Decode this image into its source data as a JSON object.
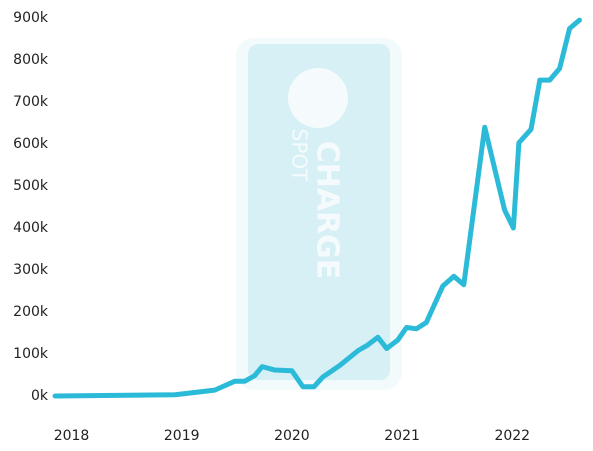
{
  "chart_data": {
    "type": "line",
    "watermark_texts": [
      "CHARGE",
      "SPOT"
    ],
    "x": [
      2017.85,
      2018.94,
      2019.3,
      2019.48,
      2019.57,
      2019.66,
      2019.73,
      2019.84,
      2020.0,
      2020.1,
      2020.2,
      2020.28,
      2020.43,
      2020.6,
      2020.68,
      2020.78,
      2020.86,
      2020.96,
      2021.04,
      2021.13,
      2021.22,
      2021.37,
      2021.47,
      2021.56,
      2021.75,
      2021.93,
      2022.01,
      2022.06,
      2022.17,
      2022.25,
      2022.34,
      2022.43,
      2022.52,
      2022.61
    ],
    "series": [
      {
        "color": "#2bbbd8",
        "values": [
          0,
          3000,
          14000,
          35000,
          35000,
          48000,
          70000,
          62000,
          60000,
          22000,
          22000,
          45000,
          72000,
          108000,
          120000,
          140000,
          113000,
          133000,
          163000,
          160000,
          175000,
          262000,
          285000,
          265000,
          640000,
          443000,
          400000,
          603000,
          635000,
          752000,
          752000,
          780000,
          875000,
          895000
        ]
      }
    ],
    "xlim": [
      2017.85,
      2022.66
    ],
    "xticks": [
      2018,
      2019,
      2020,
      2021,
      2022
    ],
    "ylim": [
      0,
      900000
    ],
    "yticks": [
      {
        "value": 0,
        "label": "0k"
      },
      {
        "value": 100000,
        "label": "100k"
      },
      {
        "value": 200000,
        "label": "200k"
      },
      {
        "value": 300000,
        "label": "300k"
      },
      {
        "value": 400000,
        "label": "400k"
      },
      {
        "value": 500000,
        "label": "500k"
      },
      {
        "value": 600000,
        "label": "600k"
      },
      {
        "value": 700000,
        "label": "700k"
      },
      {
        "value": 800000,
        "label": "800k"
      },
      {
        "value": 900000,
        "label": "900k"
      }
    ]
  }
}
